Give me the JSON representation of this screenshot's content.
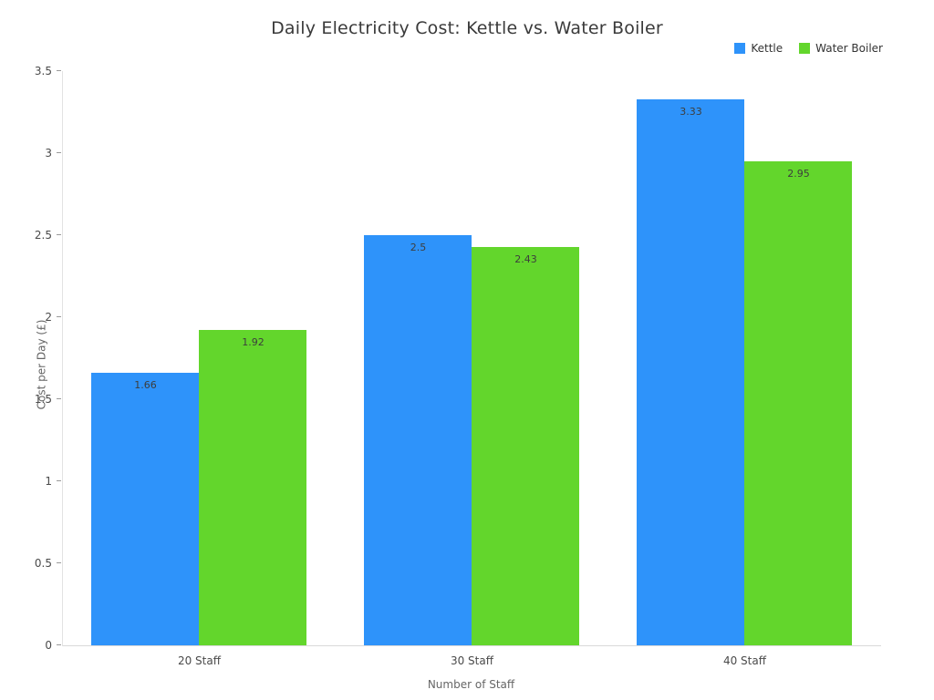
{
  "title": "Daily Electricity Cost: Kettle vs. Water Boiler",
  "chart_data": {
    "type": "bar",
    "title": "Daily Electricity Cost: Kettle vs. Water Boiler",
    "categories": [
      "20 Staff",
      "30 Staff",
      "40 Staff"
    ],
    "series": [
      {
        "name": "Kettle",
        "color": "#2E93FA",
        "values": [
          1.66,
          2.5,
          3.33
        ]
      },
      {
        "name": "Water Boiler",
        "color": "#63D62C",
        "values": [
          1.92,
          2.43,
          2.95
        ]
      }
    ],
    "xlabel": "Number of Staff",
    "ylabel": "Cost per Day (£)",
    "ylim": [
      0,
      3.5
    ],
    "yticks": [
      0,
      0.5,
      1,
      1.5,
      2,
      2.5,
      3,
      3.5
    ],
    "legend_position": "top-right",
    "grid": false,
    "bar_value_labels": [
      "1.66",
      "1.92",
      "2.5",
      "2.43",
      "3.33",
      "2.95"
    ]
  }
}
